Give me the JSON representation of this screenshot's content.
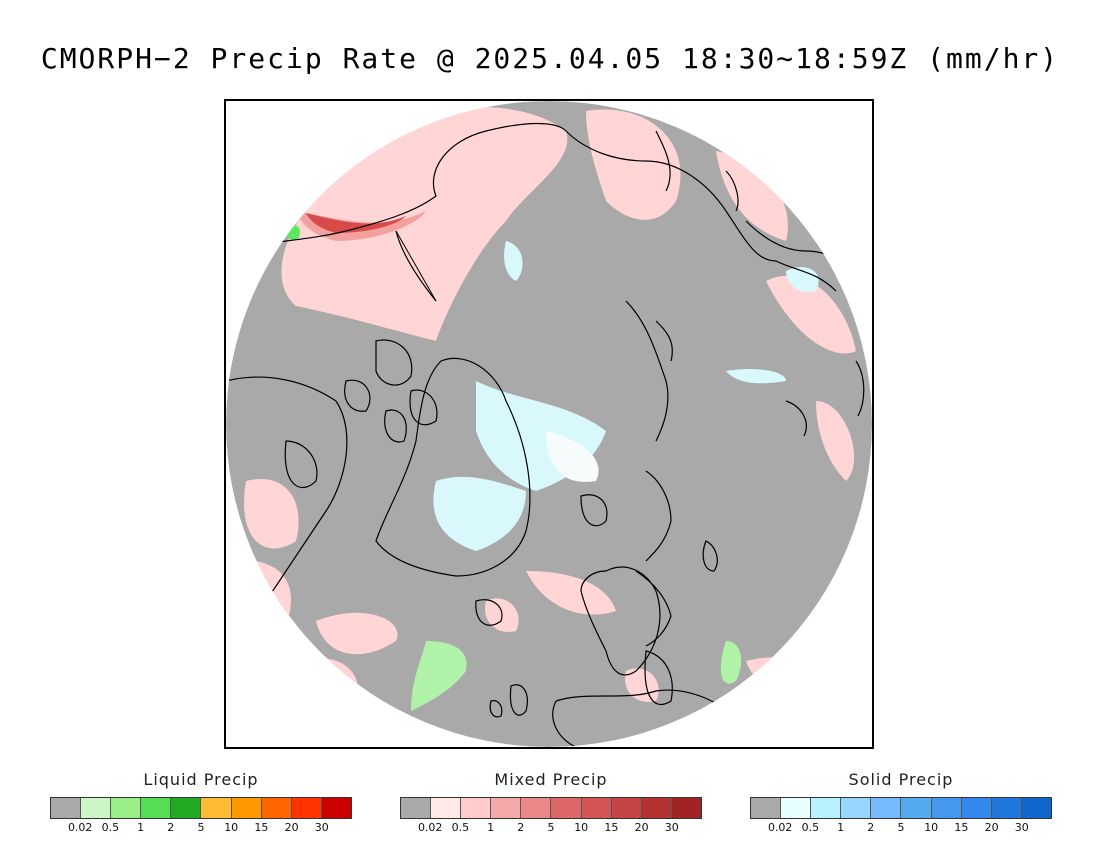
{
  "title": "CMORPH−2 Precip Rate @ 2025.04.05 18:30∼18:59Z (mm/hr)",
  "map": {
    "projection": "north polar stereographic",
    "background_color": "#a9a9a9",
    "coastline_color": "#000000",
    "precip_color_light_mixed": "#ffd5d5",
    "precip_color_medium_mixed": "#f3a0a0",
    "precip_color_heavy_mixed": "#d84a4a",
    "precip_color_light_solid": "#d8f8fb",
    "precip_color_light_liquid": "#b0f2a8",
    "precip_color_medium_liquid": "#5ee65e"
  },
  "legends": [
    {
      "title": "Liquid Precip",
      "colors": [
        "#a9a9a9",
        "#ccf7c4",
        "#99ee88",
        "#55dd55",
        "#22aa22",
        "#ffbb33",
        "#ff9900",
        "#ff6600",
        "#ff3300",
        "#cc0000"
      ],
      "ticks": [
        "0.02",
        "0.5",
        "1",
        "2",
        "5",
        "10",
        "15",
        "20",
        "30"
      ]
    },
    {
      "title": "Mixed Precip",
      "colors": [
        "#a9a9a9",
        "#ffe8e8",
        "#ffcccc",
        "#f5a8a8",
        "#ea8888",
        "#dd6666",
        "#d35555",
        "#c54444",
        "#b33333",
        "#a02424"
      ],
      "ticks": [
        "0.02",
        "0.5",
        "1",
        "2",
        "5",
        "10",
        "15",
        "20",
        "30"
      ]
    },
    {
      "title": "Solid Precip",
      "colors": [
        "#a9a9a9",
        "#e8ffff",
        "#b8f0ff",
        "#99d6ff",
        "#77bbff",
        "#55aaee",
        "#4499ee",
        "#3388ee",
        "#2277dd",
        "#1166cc"
      ],
      "ticks": [
        "0.02",
        "0.5",
        "1",
        "2",
        "5",
        "10",
        "15",
        "20",
        "30"
      ]
    }
  ]
}
